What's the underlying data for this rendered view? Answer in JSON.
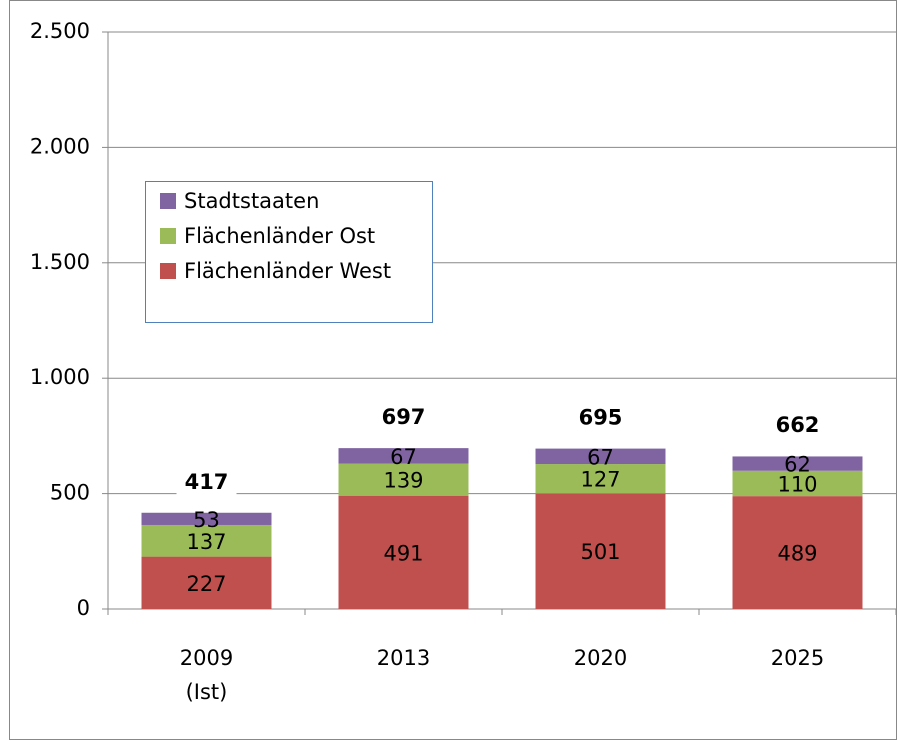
{
  "chart_data": {
    "type": "bar",
    "stacked": true,
    "categories": [
      "2009\n(Ist)",
      "2013",
      "2020",
      "2025"
    ],
    "series": [
      {
        "name": "Flächenländer West",
        "color": "#c0504d",
        "values": [
          227,
          491,
          501,
          489
        ]
      },
      {
        "name": "Flächenländer Ost",
        "color": "#9bbb59",
        "values": [
          137,
          139,
          127,
          110
        ]
      },
      {
        "name": "Stadtstaaten",
        "color": "#8064a2",
        "values": [
          53,
          67,
          67,
          62
        ]
      }
    ],
    "totals": [
      417,
      697,
      695,
      662
    ],
    "ylim": [
      0,
      2500
    ],
    "yticks": [
      0,
      500,
      {
        "value": 1000,
        "label": "1.000"
      },
      {
        "value": 1500,
        "label": "1.500"
      },
      {
        "value": 2000,
        "label": "2.000"
      },
      {
        "value": 2500,
        "label": "2.500"
      }
    ],
    "grid": true
  }
}
